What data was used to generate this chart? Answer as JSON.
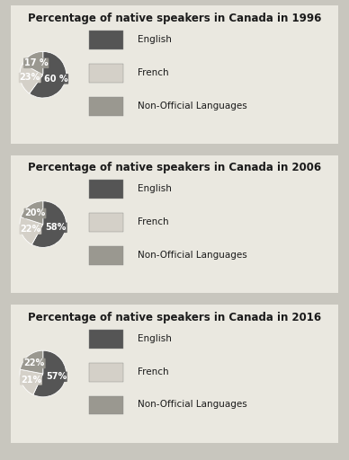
{
  "charts": [
    {
      "title": "Percentage of native speakers in Canada in 1996",
      "values": [
        60,
        23,
        17
      ],
      "labels": [
        "60 %",
        "23%",
        "17 %"
      ]
    },
    {
      "title": "Percentage of native speakers in Canada in 2006",
      "values": [
        58,
        22,
        20
      ],
      "labels": [
        "58%",
        "22%",
        "20%"
      ]
    },
    {
      "title": "Percentage of native speakers in Canada in 2016",
      "values": [
        57,
        21,
        22
      ],
      "labels": [
        "57%",
        "21%",
        "22%"
      ]
    }
  ],
  "legend_labels": [
    "English",
    "French",
    "Non-Official Languages"
  ],
  "colors": [
    "#555555",
    "#d4d0c8",
    "#9a9890"
  ],
  "background_color": "#c8c6be",
  "panel_color": "#eae8e0",
  "title_fontsize": 8.5,
  "label_fontsize": 7,
  "legend_fontsize": 7.5
}
